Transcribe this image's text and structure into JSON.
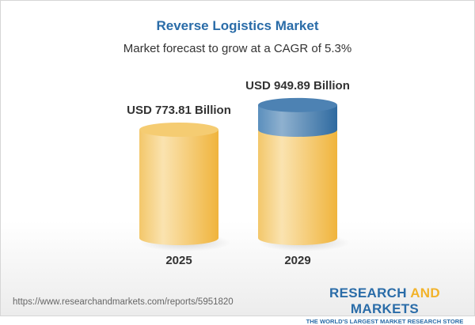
{
  "chart_data": {
    "type": "bar",
    "title": "Reverse Logistics Market",
    "subtitle": "Market forecast to grow at a CAGR of 5.3%",
    "categories": [
      "2025",
      "2029"
    ],
    "values": [
      773.81,
      949.89
    ],
    "data_labels": [
      "USD 773.81 Billion",
      "USD 949.89 Billion"
    ],
    "unit": "USD Billion",
    "grid": false,
    "colors": {
      "base": "#f3c45a",
      "growth": "#3f7bb0"
    }
  },
  "footer": {
    "url": "https://www.researchandmarkets.com/reports/5951820",
    "logo_word1": "RESEARCH",
    "logo_word2": "AND",
    "logo_word3": "MARKETS",
    "tagline": "THE WORLD'S LARGEST MARKET RESEARCH STORE"
  }
}
